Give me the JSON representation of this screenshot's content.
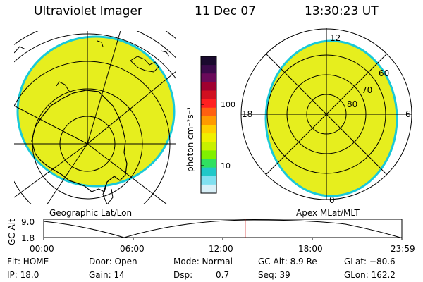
{
  "header": {
    "title": "Ultraviolet Imager",
    "date": "11 Dec 07",
    "time": "13:30:23 UT"
  },
  "geo_panel": {
    "label": "Geographic Lat/Lon"
  },
  "mag_panel": {
    "label": "Apex MLat/MLT",
    "mlt_labels": {
      "top": "12",
      "left": "18",
      "right": "6",
      "bottom": "0"
    },
    "mlat_labels": [
      "60",
      "70",
      "80"
    ]
  },
  "colorbar": {
    "unit_label": "photon cm⁻²s⁻¹",
    "ticks": [
      "100",
      "10"
    ],
    "colors": [
      "#1a0a2e",
      "#3a0a4a",
      "#6a0a5a",
      "#a00030",
      "#d01020",
      "#ff2020",
      "#ff6010",
      "#ff9a00",
      "#ffd000",
      "#f0f000",
      "#c8f000",
      "#80f000",
      "#30e060",
      "#20c8c8",
      "#80e0f0",
      "#d8f0f8"
    ]
  },
  "colors": {
    "aurora_fill": "#e6ee1e",
    "aurora_edge": "#19c9d8",
    "time_marker": "#cc0000"
  },
  "altitude_plot": {
    "axis_label": "GC Alt",
    "y_ticks": [
      "9.0",
      "1.8"
    ],
    "x_ticks": [
      "00:00",
      "06:00",
      "12:00",
      "18:00",
      "23:59"
    ],
    "current_time_hours": 13.5
  },
  "status": {
    "flt": "Flt: HOME",
    "ip": "IP: 18.0",
    "door": "Door: Open",
    "gain": "Gain: 14",
    "mode": "Mode: Normal",
    "dsp_label": "Dsp:",
    "dsp_value": "0.7",
    "gc_alt": "GC Alt: 8.9 Re",
    "seq": "Seq: 39",
    "glat": "GLat: −80.6",
    "glon": "GLon: 162.2"
  }
}
